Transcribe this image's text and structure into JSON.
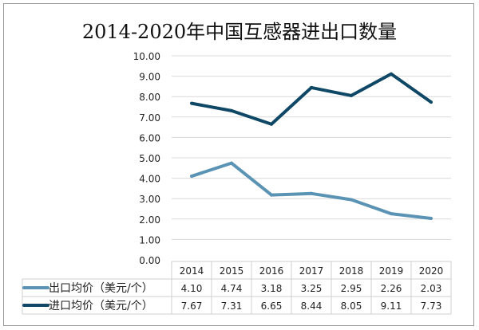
{
  "chart_data": {
    "type": "line",
    "title": "2014-2020年中国互感器进出口数量",
    "categories": [
      "2014",
      "2015",
      "2016",
      "2017",
      "2018",
      "2019",
      "2020"
    ],
    "ylim": [
      0,
      10
    ],
    "yticks": [
      "0.00",
      "1.00",
      "2.00",
      "3.00",
      "4.00",
      "5.00",
      "6.00",
      "7.00",
      "8.00",
      "9.00",
      "10.00"
    ],
    "grid": true,
    "legend": "data-table-bottom",
    "series": [
      {
        "name": "出口均价（美元/个）",
        "values": [
          4.1,
          4.74,
          3.18,
          3.25,
          2.95,
          2.26,
          2.03
        ],
        "labels": [
          "4.10",
          "4.74",
          "3.18",
          "3.25",
          "2.95",
          "2.26",
          "2.03"
        ],
        "color": "#5b93b4"
      },
      {
        "name": "进口均价（美元/个）",
        "values": [
          7.67,
          7.31,
          6.65,
          8.44,
          8.05,
          9.11,
          7.73
        ],
        "labels": [
          "7.67",
          "7.31",
          "6.65",
          "8.44",
          "8.05",
          "9.11",
          "7.73"
        ],
        "color": "#0f4766"
      }
    ]
  }
}
